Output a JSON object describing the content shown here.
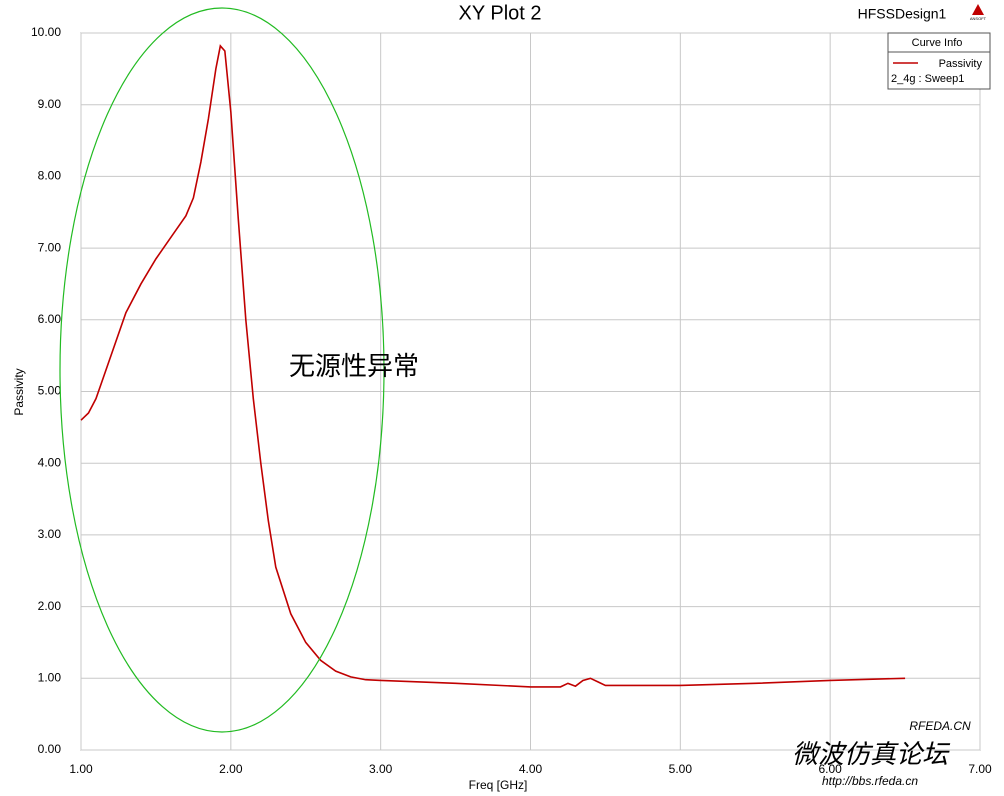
{
  "chart_data": {
    "type": "line",
    "title": "XY Plot 2",
    "design_name": "HFSSDesign1",
    "logo": "ANSOFT",
    "x_label": "Freq [GHz]",
    "y_label": "Passivity",
    "legend_title": "Curve Info",
    "legend_detail": "2_4g : Sweep1",
    "annotation": "无源性异常",
    "annotation_color": "#22bb22",
    "watermark": [
      "RFEDA.CN",
      "微波仿真论坛",
      "http://bbs.rfeda.cn"
    ],
    "grid": true,
    "legend_position": "top-right",
    "xlim": [
      1,
      7
    ],
    "ylim": [
      0,
      10
    ],
    "xticks": [
      {
        "value": 1,
        "label": "1.00"
      },
      {
        "value": 2,
        "label": "2.00"
      },
      {
        "value": 3,
        "label": "3.00"
      },
      {
        "value": 4,
        "label": "4.00"
      },
      {
        "value": 5,
        "label": "5.00"
      },
      {
        "value": 6,
        "label": "6.00"
      },
      {
        "value": 7,
        "label": "7.00"
      }
    ],
    "yticks": [
      {
        "value": 0,
        "label": "0.00"
      },
      {
        "value": 1,
        "label": "1.00"
      },
      {
        "value": 2,
        "label": "2.00"
      },
      {
        "value": 3,
        "label": "3.00"
      },
      {
        "value": 4,
        "label": "4.00"
      },
      {
        "value": 5,
        "label": "5.00"
      },
      {
        "value": 6,
        "label": "6.00"
      },
      {
        "value": 7,
        "label": "7.00"
      },
      {
        "value": 8,
        "label": "8.00"
      },
      {
        "value": 9,
        "label": "9.00"
      },
      {
        "value": 10,
        "label": "10.00"
      }
    ],
    "x": [
      1.0,
      1.05,
      1.1,
      1.2,
      1.3,
      1.4,
      1.5,
      1.6,
      1.7,
      1.75,
      1.8,
      1.85,
      1.9,
      1.93,
      1.96,
      2.0,
      2.05,
      2.1,
      2.15,
      2.2,
      2.25,
      2.3,
      2.4,
      2.5,
      2.6,
      2.7,
      2.8,
      2.9,
      3.0,
      3.5,
      4.0,
      4.2,
      4.25,
      4.3,
      4.35,
      4.4,
      4.45,
      4.5,
      5.0,
      5.5,
      6.0,
      6.5
    ],
    "series": [
      {
        "name": "Passivity",
        "color": "#c00000",
        "values": [
          4.6,
          4.7,
          4.9,
          5.5,
          6.1,
          6.5,
          6.85,
          7.15,
          7.45,
          7.7,
          8.2,
          8.8,
          9.5,
          9.82,
          9.75,
          8.9,
          7.4,
          6.0,
          4.9,
          4.0,
          3.2,
          2.55,
          1.9,
          1.5,
          1.25,
          1.1,
          1.02,
          0.98,
          0.97,
          0.93,
          0.88,
          0.88,
          0.93,
          0.89,
          0.97,
          1.0,
          0.95,
          0.9,
          0.9,
          0.93,
          0.97,
          1.0
        ]
      }
    ]
  }
}
